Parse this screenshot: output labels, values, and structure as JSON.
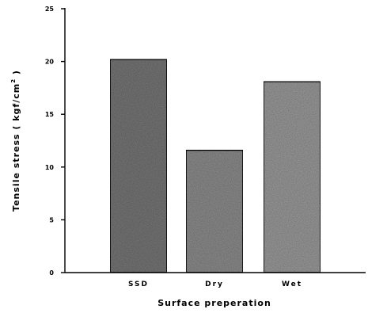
{
  "chart_data": {
    "type": "bar",
    "categories": [
      "SSD",
      "Dry",
      "Wet"
    ],
    "values": [
      20.2,
      11.6,
      18.1
    ],
    "title": "",
    "xlabel": "Surface preperation",
    "ylabel_main": "Tensile stress ( kgf/cm",
    "ylabel_sup": "2",
    "ylabel_tail": " )",
    "ylim": [
      0,
      25
    ],
    "yticks": [
      0,
      5,
      10,
      15,
      20,
      25
    ],
    "grid": false,
    "legend": "none",
    "bar_color": "#8a8a8a",
    "bar_colors": [
      "#767676",
      "#8c8c8c",
      "#9a9a9a"
    ]
  }
}
